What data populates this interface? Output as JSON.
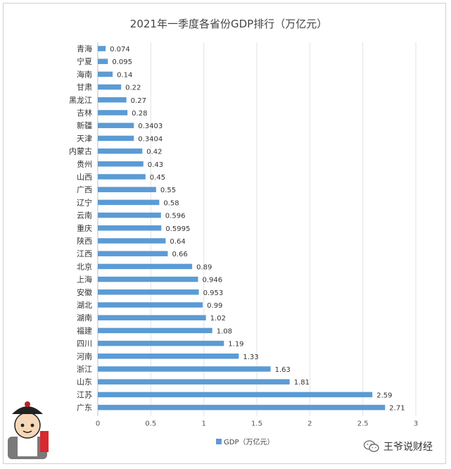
{
  "chart_data": {
    "type": "bar",
    "orientation": "horizontal",
    "title": "2021年一季度各省份GDP排行（万亿元）",
    "categories": [
      "青海",
      "宁夏",
      "海南",
      "甘肃",
      "黑龙江",
      "吉林",
      "新疆",
      "天津",
      "内蒙古",
      "贵州",
      "山西",
      "广西",
      "辽宁",
      "云南",
      "重庆",
      "陕西",
      "江西",
      "北京",
      "上海",
      "安徽",
      "湖北",
      "湖南",
      "福建",
      "四川",
      "河南",
      "浙江",
      "山东",
      "江苏",
      "广东"
    ],
    "display_categories": [
      "青海",
      "宁夏",
      "海南",
      "甘肃",
      "黑龙江",
      "吉林",
      "新疆",
      "天津",
      "内蒙古",
      "贵州",
      "山西",
      "广西",
      "辽宁",
      "云南",
      "重庆",
      "陕西",
      "江西",
      "北京",
      "上海",
      "安徽",
      "湖北",
      "湖南",
      "福建",
      "四川",
      "河南",
      "浙江",
      "山东",
      "江苏",
      "广东"
    ],
    "series": [
      {
        "name": "GDP（万亿元）",
        "values": [
          0.074,
          0.095,
          0.14,
          0.22,
          0.27,
          0.28,
          0.3403,
          0.3404,
          0.42,
          0.43,
          0.45,
          0.55,
          0.58,
          0.596,
          0.5995,
          0.64,
          0.66,
          0.89,
          0.946,
          0.953,
          0.99,
          1.02,
          1.08,
          1.19,
          1.33,
          1.63,
          1.81,
          2.59,
          2.71
        ],
        "value_labels": [
          "0.074",
          "0.095",
          "0.14",
          "0.22",
          "0.27",
          "0.28",
          "0.3403",
          "0.3404",
          "0.42",
          "0.43",
          "0.45",
          "0.55",
          "0.58",
          "0.596",
          "0.5995",
          "0.64",
          "0.66",
          "0.89",
          "0.946",
          "0.953",
          "0.99",
          "1.02",
          "1.08",
          "1.19",
          "1.33",
          "1.63",
          "1.81",
          "2.59",
          "2.71"
        ]
      }
    ],
    "xlim": [
      0,
      3
    ],
    "x_ticks": [
      "0",
      "0.5",
      "1",
      "1.5",
      "2",
      "2.5",
      "3"
    ],
    "grid": true,
    "legend": "bottom",
    "bar_color": "#5b9bd5"
  },
  "watermark": {
    "text": "王爷说财经",
    "icon": "wechat-icon"
  },
  "sticker": {
    "icon": "cartoon-character-icon"
  }
}
